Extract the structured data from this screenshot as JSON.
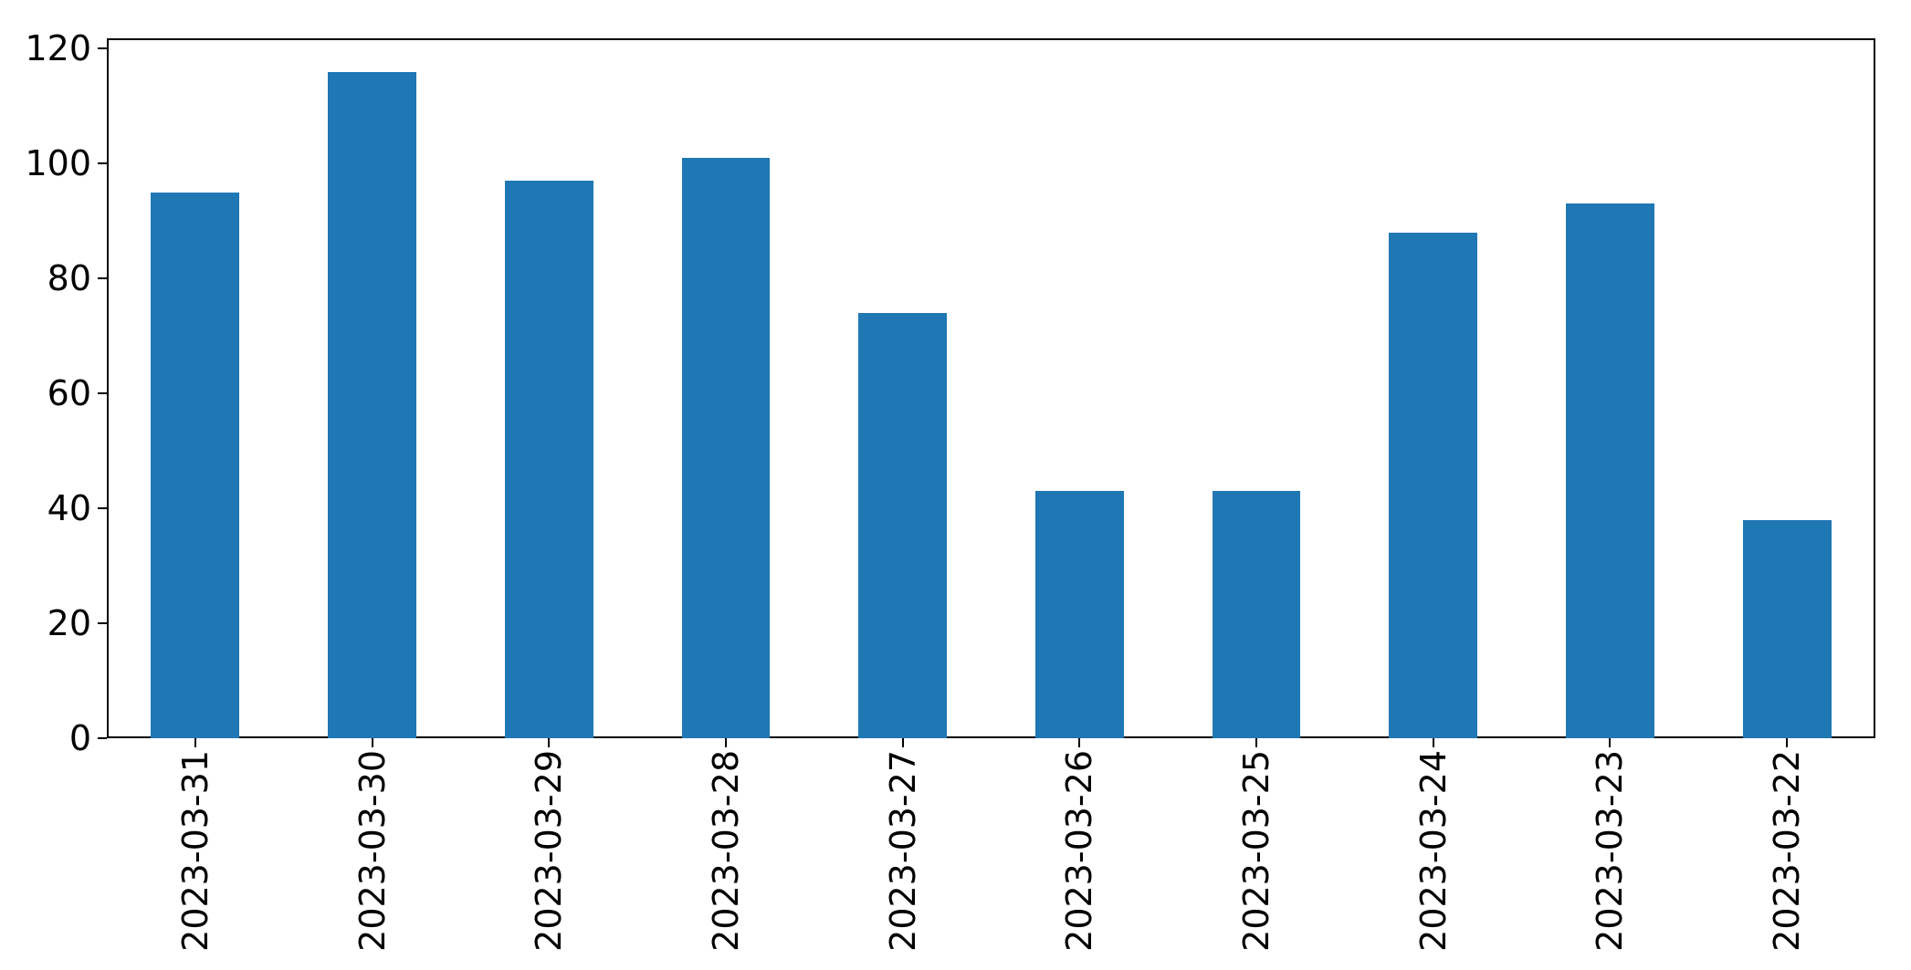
{
  "chart_data": {
    "type": "bar",
    "title": "",
    "xlabel": "",
    "ylabel": "",
    "categories": [
      "2023-03-31",
      "2023-03-30",
      "2023-03-29",
      "2023-03-28",
      "2023-03-27",
      "2023-03-26",
      "2023-03-25",
      "2023-03-24",
      "2023-03-23",
      "2023-03-22"
    ],
    "values": [
      95,
      116,
      97,
      101,
      74,
      43,
      43,
      88,
      93,
      38
    ],
    "yticks": [
      0,
      20,
      40,
      60,
      80,
      100,
      120
    ],
    "ylim": [
      0,
      121.8
    ],
    "x_tick_rotation_deg": 90,
    "grid": false,
    "legend_position": "none",
    "bar_color": "#1f77b4",
    "axis_color": "#000000",
    "background_color": "#ffffff"
  }
}
